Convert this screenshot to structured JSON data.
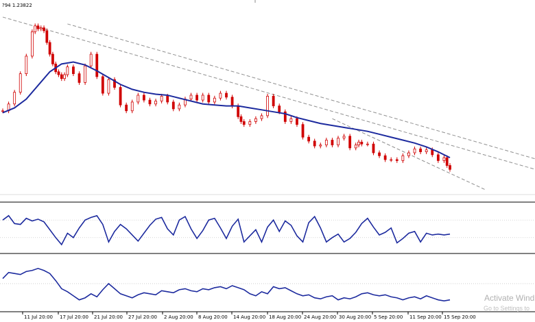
{
  "header": {
    "text": "?94 1.23822"
  },
  "watermark": {
    "line1": "Activate Wind",
    "line2": "Go to Settings to"
  },
  "colors": {
    "candle": "#d00000",
    "moving_average": "#1c2a9e",
    "trendline": "#909090",
    "oscillator": "#1c2a9e",
    "grid": "#bdbdbd",
    "background": "#ffffff"
  },
  "chart_data": [
    {
      "type": "candlestick",
      "title": "",
      "x_tick_labels": [
        "11 Jul 20:00",
        "17 Jul 20:00",
        "21 Jul 20:00",
        "27 Jul 20:00",
        "2 Aug 20:00",
        "8 Aug 20:00",
        "14 Aug 20:00",
        "18 Aug 20:00",
        "24 Aug 20:00",
        "30 Aug 20:00",
        "5 Sep 20:00",
        "11 Sep 20:00",
        "15 Sep 20:00"
      ],
      "ylim": [
        1.15,
        1.25
      ],
      "series": [
        {
          "role": "price_close",
          "x": [
            0,
            2,
            4,
            6,
            8,
            10,
            11,
            12,
            13,
            14,
            15,
            16,
            17,
            18,
            19,
            20,
            21,
            22,
            24,
            26,
            28,
            30,
            32,
            34,
            36,
            38,
            40,
            42,
            44,
            46,
            48,
            50,
            52,
            54,
            56,
            58,
            60,
            62,
            64,
            66,
            68,
            70,
            72,
            74,
            76,
            78,
            80,
            81,
            82,
            84,
            86,
            88,
            90,
            92,
            94,
            96,
            98,
            100,
            102,
            104,
            106,
            108,
            110,
            112,
            114,
            116,
            118,
            120,
            121,
            122,
            124,
            126,
            128,
            130,
            132,
            134,
            136,
            138,
            140,
            142,
            144,
            146,
            148,
            150,
            151,
            152
          ],
          "values": [
            1.195,
            1.1985,
            1.2045,
            1.214,
            1.223,
            1.2355,
            1.2385,
            1.237,
            1.2375,
            1.236,
            1.23,
            1.224,
            1.219,
            1.215,
            1.2135,
            1.2115,
            1.2135,
            1.2175,
            1.214,
            1.2095,
            1.218,
            1.224,
            1.2125,
            1.204,
            1.211,
            1.207,
            1.198,
            1.195,
            1.1995,
            1.203,
            1.2005,
            1.1985,
            1.2,
            1.2025,
            1.1995,
            1.196,
            1.198,
            1.201,
            1.203,
            1.2005,
            1.203,
            1.1995,
            1.2015,
            1.204,
            1.202,
            1.1975,
            1.192,
            1.1895,
            1.188,
            1.1895,
            1.191,
            1.1925,
            1.2025,
            1.1975,
            1.1945,
            1.1895,
            1.191,
            1.188,
            1.1815,
            1.1795,
            1.177,
            1.1775,
            1.18,
            1.1775,
            1.181,
            1.182,
            1.176,
            1.1775,
            1.179,
            1.178,
            1.178,
            1.1735,
            1.172,
            1.17,
            1.17,
            1.1695,
            1.172,
            1.1735,
            1.1755,
            1.174,
            1.175,
            1.1725,
            1.1695,
            1.171,
            1.167,
            1.165
          ]
        },
        {
          "role": "moving_average",
          "x": [
            0,
            4,
            8,
            12,
            16,
            20,
            24,
            28,
            32,
            36,
            40,
            44,
            48,
            52,
            56,
            60,
            64,
            68,
            72,
            76,
            80,
            84,
            88,
            92,
            96,
            100,
            104,
            108,
            112,
            116,
            120,
            124,
            128,
            132,
            136,
            140,
            144,
            148,
            152
          ],
          "values": [
            1.194,
            1.1965,
            1.201,
            1.208,
            1.215,
            1.219,
            1.22,
            1.2185,
            1.2155,
            1.212,
            1.2085,
            1.206,
            1.2045,
            1.2035,
            1.203,
            1.2015,
            1.2,
            1.1985,
            1.198,
            1.1975,
            1.1975,
            1.1965,
            1.1955,
            1.1945,
            1.1935,
            1.1915,
            1.19,
            1.1885,
            1.1875,
            1.1865,
            1.1855,
            1.1845,
            1.183,
            1.1815,
            1.18,
            1.1785,
            1.1765,
            1.174,
            1.171
          ]
        }
      ]
    },
    {
      "type": "line",
      "title": "",
      "ylim": [
        0,
        100
      ],
      "levels": [
        70,
        30
      ],
      "series": [
        {
          "role": "oscillator_1",
          "x": [
            0,
            2,
            4,
            6,
            8,
            10,
            12,
            14,
            16,
            18,
            20,
            22,
            24,
            26,
            28,
            30,
            32,
            34,
            36,
            38,
            40,
            42,
            44,
            46,
            48,
            50,
            52,
            54,
            56,
            58,
            60,
            62,
            64,
            66,
            68,
            70,
            72,
            74,
            76,
            78,
            80,
            82,
            84,
            86,
            88,
            90,
            92,
            94,
            96,
            98,
            100,
            102,
            104,
            106,
            108,
            110,
            112,
            114,
            116,
            118,
            120,
            122,
            124,
            126,
            128,
            130,
            132,
            134,
            136,
            138,
            140,
            142,
            144,
            146,
            148,
            150,
            152
          ],
          "values": [
            70,
            80,
            62,
            60,
            74,
            68,
            72,
            66,
            48,
            30,
            14,
            40,
            30,
            52,
            70,
            76,
            80,
            60,
            20,
            44,
            60,
            50,
            36,
            22,
            40,
            58,
            72,
            76,
            50,
            36,
            70,
            78,
            50,
            28,
            46,
            70,
            74,
            52,
            28,
            56,
            72,
            20,
            34,
            48,
            20,
            54,
            70,
            44,
            68,
            58,
            34,
            20,
            64,
            78,
            52,
            20,
            30,
            38,
            20,
            28,
            42,
            62,
            74,
            54,
            36,
            42,
            52,
            18,
            28,
            40,
            44,
            20,
            40,
            36,
            38,
            36,
            38
          ]
        }
      ]
    },
    {
      "type": "line",
      "title": "",
      "ylim": [
        0,
        100
      ],
      "levels": [
        50
      ],
      "series": [
        {
          "role": "oscillator_2",
          "x": [
            0,
            2,
            4,
            6,
            8,
            10,
            12,
            14,
            16,
            18,
            20,
            22,
            24,
            26,
            28,
            30,
            32,
            34,
            36,
            38,
            40,
            42,
            44,
            46,
            48,
            50,
            52,
            54,
            56,
            58,
            60,
            62,
            64,
            66,
            68,
            70,
            72,
            74,
            76,
            78,
            80,
            82,
            84,
            86,
            88,
            90,
            92,
            94,
            96,
            98,
            100,
            102,
            104,
            106,
            108,
            110,
            112,
            114,
            116,
            118,
            120,
            122,
            124,
            126,
            128,
            130,
            132,
            134,
            136,
            138,
            140,
            142,
            144,
            146,
            148,
            150,
            152
          ],
          "values": [
            60,
            72,
            70,
            68,
            74,
            76,
            80,
            76,
            70,
            56,
            40,
            34,
            26,
            18,
            22,
            30,
            24,
            38,
            50,
            40,
            30,
            26,
            22,
            28,
            32,
            30,
            28,
            36,
            34,
            32,
            38,
            40,
            36,
            34,
            40,
            38,
            42,
            44,
            40,
            46,
            42,
            38,
            30,
            26,
            34,
            30,
            44,
            40,
            42,
            36,
            30,
            26,
            28,
            22,
            20,
            24,
            26,
            18,
            22,
            20,
            24,
            30,
            32,
            28,
            26,
            28,
            24,
            22,
            18,
            22,
            24,
            20,
            26,
            22,
            18,
            16,
            18
          ]
        }
      ]
    }
  ]
}
